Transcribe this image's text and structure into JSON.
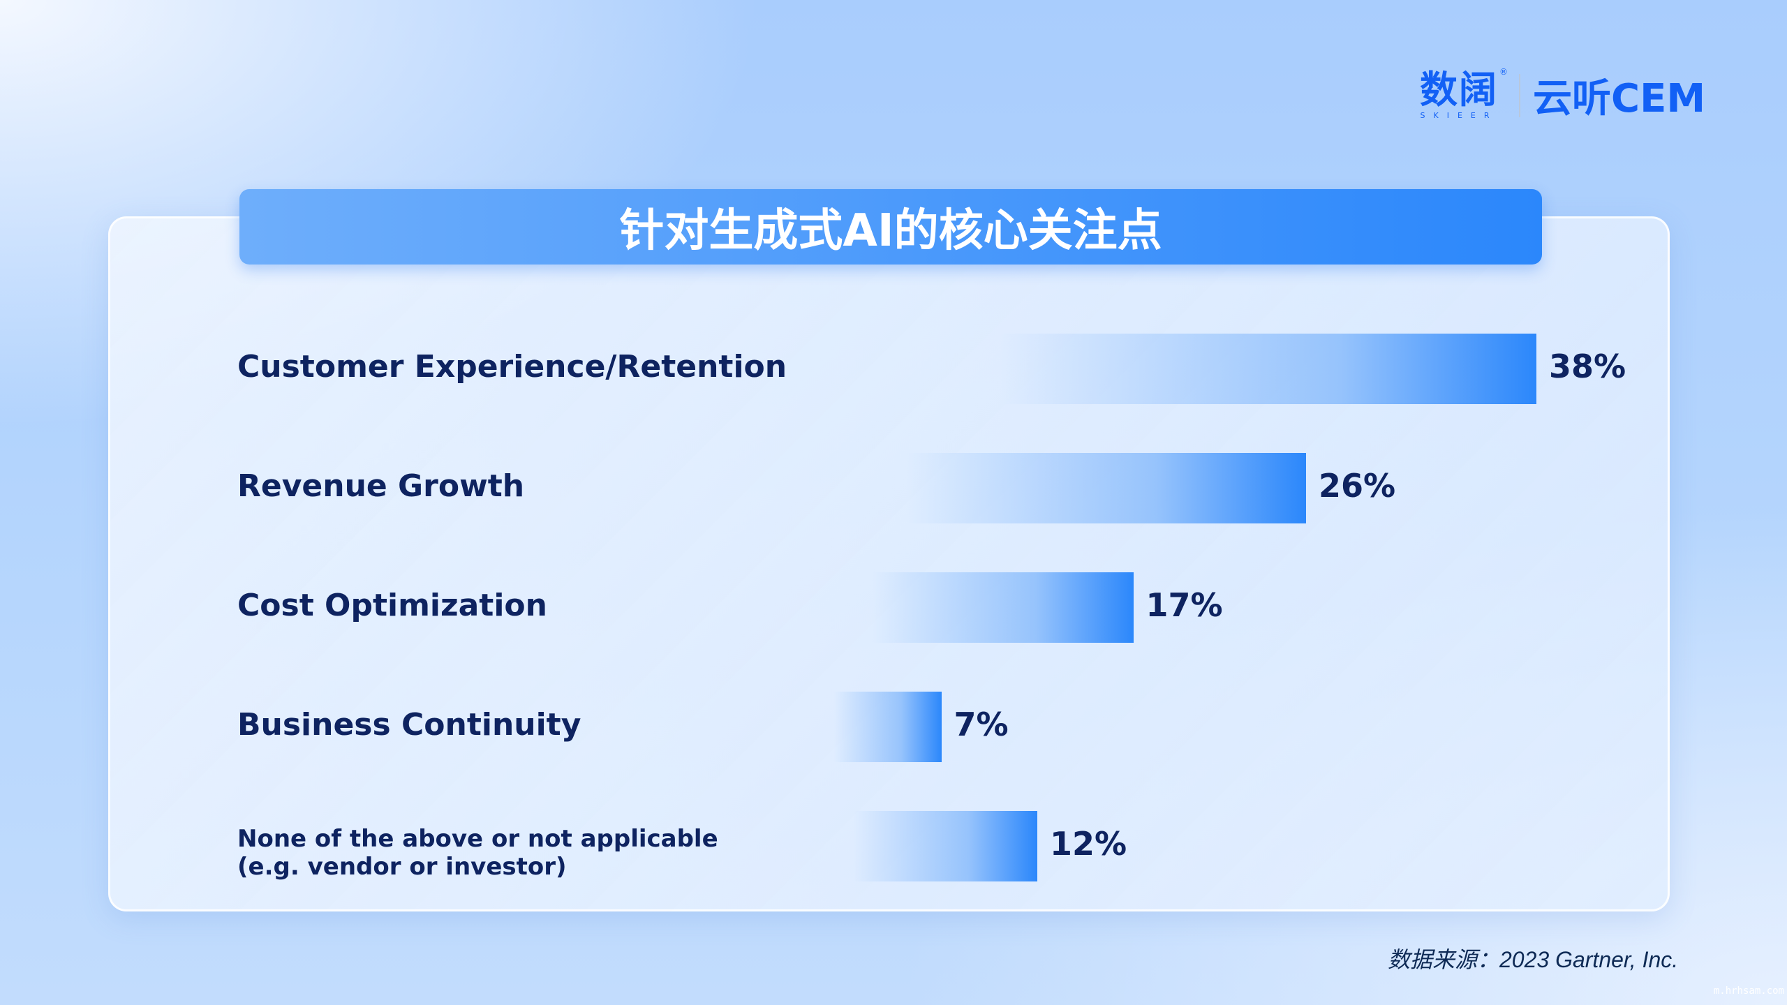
{
  "logo": {
    "brand_cn": "数阔",
    "brand_en": "SKIEER",
    "product": "云听CEM"
  },
  "colors": {
    "bar_end": "#2b87fb",
    "text": "#0e2360",
    "banner": "#2b87fb"
  },
  "chart_data": {
    "type": "bar",
    "orientation": "horizontal",
    "title": "针对生成式AI的核心关注点",
    "categories": [
      "Customer Experience/Retention",
      "Revenue Growth",
      "Cost Optimization",
      "Business Continuity",
      "None of the above or not applicable\n(e.g. vendor or investor)"
    ],
    "category_lines": [
      [
        "Customer Experience/Retention"
      ],
      [
        "Revenue Growth"
      ],
      [
        "Cost Optimization"
      ],
      [
        "Business Continuity"
      ],
      [
        "None of the above or not applicable",
        "(e.g. vendor or investor)"
      ]
    ],
    "values": [
      38,
      26,
      17,
      7,
      12
    ],
    "data_labels": [
      "38%",
      "26%",
      "17%",
      "7%",
      "12%"
    ],
    "grid": false
  },
  "source": "数据来源：2023 Gartner, Inc.",
  "watermark": "m.hrhsam.com"
}
